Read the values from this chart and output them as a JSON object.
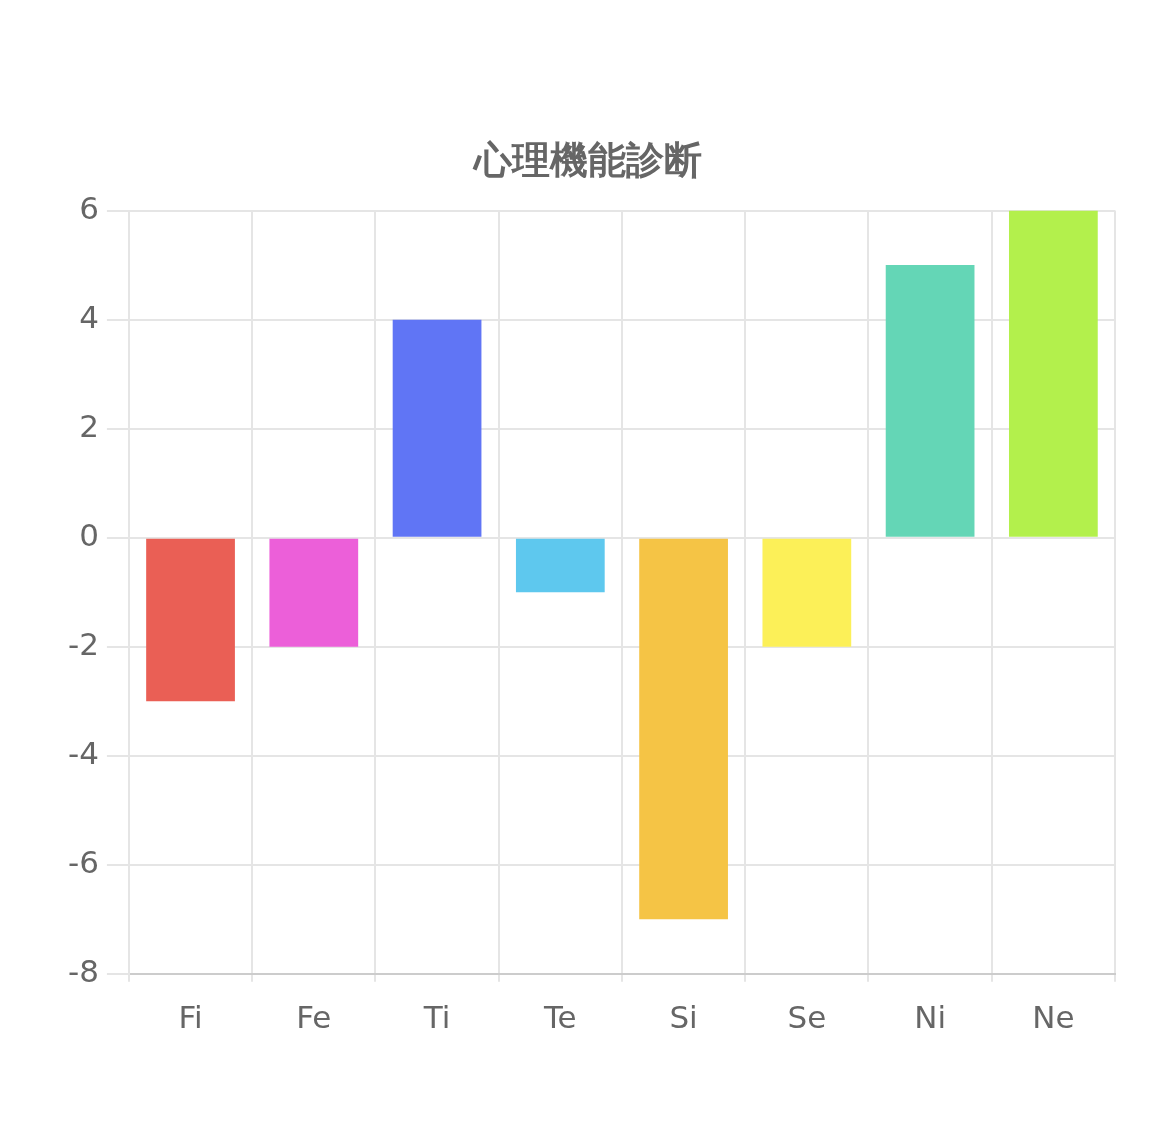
{
  "chart_data": {
    "type": "bar",
    "title": "心理機能診断",
    "categories": [
      "Fi",
      "Fe",
      "Ti",
      "Te",
      "Si",
      "Se",
      "Ni",
      "Ne"
    ],
    "values": [
      -3,
      -2,
      4,
      -1,
      -7,
      -2,
      5,
      6
    ],
    "colors": [
      "#ea5f55",
      "#ec5fd9",
      "#6075f5",
      "#5ec8ee",
      "#f5c445",
      "#fcf058",
      "#64d6b6",
      "#b3f04c"
    ],
    "ylim": [
      -8,
      6
    ],
    "yticks": [
      -8,
      -6,
      -4,
      -2,
      0,
      2,
      4,
      6
    ],
    "grid": true,
    "legend": false
  }
}
